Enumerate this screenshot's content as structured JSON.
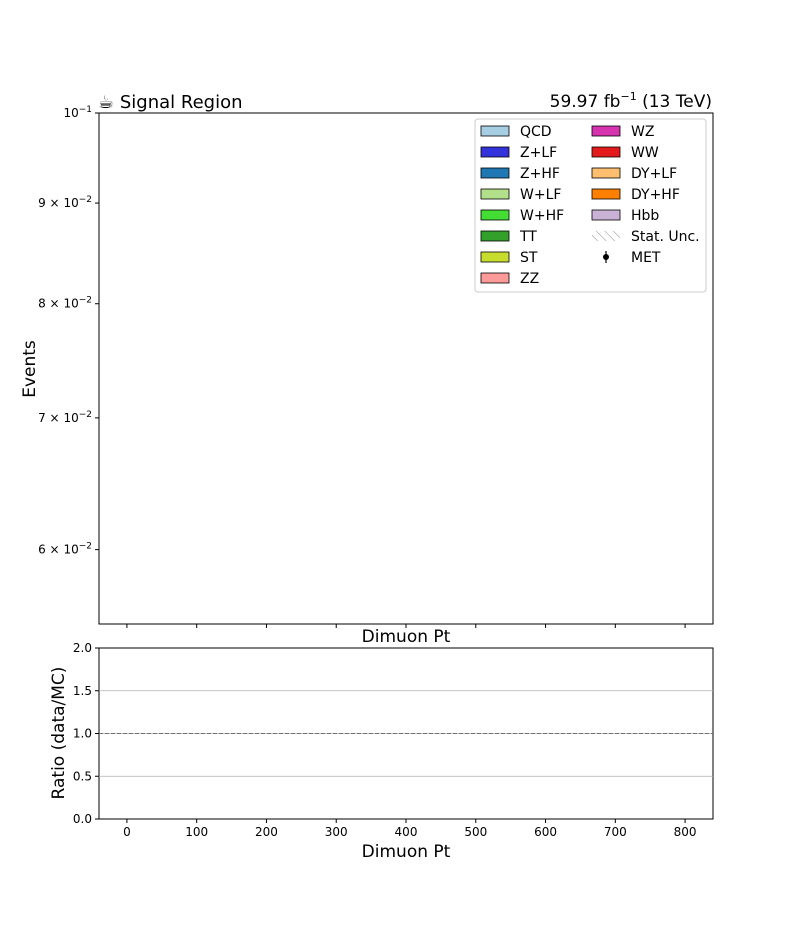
{
  "chart_data": [
    {
      "type": "bar",
      "title": "☕ Signal Region",
      "lumi_label": "59.97 fb",
      "lumi_exp": "−1",
      "energy_label": " (13 TeV)",
      "xlabel": "Dimuon Pt",
      "ylabel": "Events",
      "yscale": "log",
      "ylim": [
        0.055,
        0.1
      ],
      "xlim": [
        -40,
        840
      ],
      "y_ticks": [
        {
          "value": 0.1,
          "mantissa": "",
          "base": "10",
          "exp": "−1"
        },
        {
          "value": 0.09,
          "mantissa": "9 × ",
          "base": "10",
          "exp": "−2"
        },
        {
          "value": 0.08,
          "mantissa": "8 × ",
          "base": "10",
          "exp": "−2"
        },
        {
          "value": 0.07,
          "mantissa": "7 × ",
          "base": "10",
          "exp": "−2"
        },
        {
          "value": 0.06,
          "mantissa": "6 × ",
          "base": "10",
          "exp": "−2"
        }
      ],
      "x_ticks": [
        0,
        100,
        200,
        300,
        400,
        500,
        600,
        700,
        800
      ],
      "legend_position": "top-right",
      "legend": [
        {
          "label": "QCD",
          "color": "#a6cee3",
          "kind": "box"
        },
        {
          "label": "Z+LF",
          "color": "#3333dd",
          "kind": "box"
        },
        {
          "label": "Z+HF",
          "color": "#1f78b4",
          "kind": "box"
        },
        {
          "label": "W+LF",
          "color": "#b2df8a",
          "kind": "box"
        },
        {
          "label": "W+HF",
          "color": "#44dd33",
          "kind": "box"
        },
        {
          "label": "TT",
          "color": "#33a02c",
          "kind": "box"
        },
        {
          "label": "ST",
          "color": "#c8dc2e",
          "kind": "box"
        },
        {
          "label": "ZZ",
          "color": "#fb9a99",
          "kind": "box"
        },
        {
          "label": "WZ",
          "color": "#d633b0",
          "kind": "box"
        },
        {
          "label": "WW",
          "color": "#e31a1c",
          "kind": "box"
        },
        {
          "label": "DY+LF",
          "color": "#fdbf6f",
          "kind": "box"
        },
        {
          "label": "DY+HF",
          "color": "#ff7f00",
          "kind": "box"
        },
        {
          "label": "Hbb",
          "color": "#cab2d6",
          "kind": "box"
        },
        {
          "label": "Stat. Unc.",
          "color": "#888888",
          "kind": "hatch"
        },
        {
          "label": "MET",
          "color": "#000000",
          "kind": "marker"
        }
      ],
      "series": []
    },
    {
      "type": "line",
      "xlabel": "Dimuon Pt",
      "ylabel": "Ratio (data/MC)",
      "ylim": [
        0.0,
        2.0
      ],
      "xlim": [
        -40,
        840
      ],
      "y_ticks": [
        "0.0",
        "0.5",
        "1.0",
        "1.5",
        "2.0"
      ],
      "x_ticks": [
        0,
        100,
        200,
        300,
        400,
        500,
        600,
        700,
        800
      ],
      "grid": true,
      "reference_line": 1.0,
      "series": []
    }
  ]
}
